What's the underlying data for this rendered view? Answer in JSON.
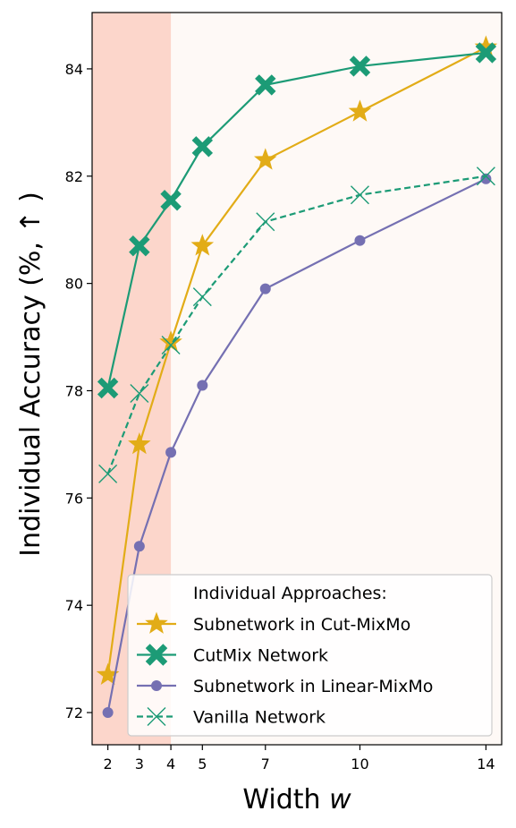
{
  "chart_data": {
    "type": "line",
    "title": "",
    "xlabel": "Width ",
    "xlabel_var": "w",
    "ylabel": "Individual Accuracy (%, ↑ )",
    "x": [
      2,
      3,
      4,
      5,
      7,
      10,
      14
    ],
    "xticks": [
      2,
      3,
      4,
      5,
      7,
      10,
      14
    ],
    "yticks": [
      72,
      74,
      76,
      78,
      80,
      82,
      84
    ],
    "xlim": [
      1.5,
      14.5
    ],
    "ylim": [
      71.4,
      85.05
    ],
    "shaded_region": {
      "x_from": 1.5,
      "x_to": 4,
      "color": "#fcd6cb"
    },
    "background_color": "#fef9f6",
    "legend": {
      "position": "bottom-right",
      "title": "Individual Approaches:"
    },
    "series": [
      {
        "name": "Subnetwork in Cut-MixMo",
        "color": "#e2ac17",
        "marker": "star",
        "linestyle": "solid",
        "values": [
          72.7,
          77.0,
          78.9,
          80.7,
          82.3,
          83.2,
          84.4
        ]
      },
      {
        "name": "CutMix Network",
        "color": "#1c9b76",
        "marker": "bigx",
        "linestyle": "solid",
        "values": [
          78.05,
          80.7,
          81.55,
          82.55,
          83.7,
          84.05,
          84.3
        ]
      },
      {
        "name": "Subnetwork in Linear-MixMo",
        "color": "#7570b2",
        "marker": "circle",
        "linestyle": "solid",
        "values": [
          72.0,
          75.1,
          76.85,
          78.1,
          79.9,
          80.8,
          81.95
        ]
      },
      {
        "name": "Vanilla Network",
        "color": "#1c9b76",
        "marker": "thinx",
        "linestyle": "dashed",
        "values": [
          76.45,
          77.95,
          78.85,
          79.75,
          81.15,
          81.65,
          82.0
        ]
      }
    ]
  }
}
